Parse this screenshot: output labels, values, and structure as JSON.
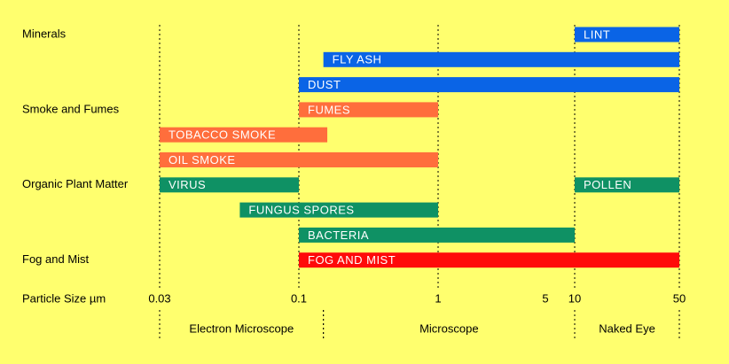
{
  "chart_data": {
    "type": "range-bar",
    "groups": [
      {
        "name": "Minerals",
        "color": "#0a64e6",
        "rows": [
          [
            {
              "name": "LINT",
              "start": 10,
              "end": 50
            }
          ],
          [
            {
              "name": "FLY ASH",
              "start": 0.15,
              "end": 50
            }
          ],
          [
            {
              "name": "DUST",
              "start": 0.1,
              "end": 50
            }
          ]
        ]
      },
      {
        "name": "Smoke and Fumes",
        "color": "#ff6e3c",
        "rows": [
          [
            {
              "name": "FUMES",
              "start": 0.1,
              "end": 1
            }
          ],
          [
            {
              "name": "TOBACCO SMOKE",
              "start": 0.03,
              "end": 0.16
            }
          ],
          [
            {
              "name": "OIL SMOKE",
              "start": 0.03,
              "end": 1
            }
          ]
        ]
      },
      {
        "name": "Organic Plant Matter",
        "color": "#0f9164",
        "rows": [
          [
            {
              "name": "VIRUS",
              "start": 0.03,
              "end": 0.1
            },
            {
              "name": "POLLEN",
              "start": 10,
              "end": 50
            }
          ],
          [
            {
              "name": "FUNGUS SPORES",
              "start": 0.06,
              "end": 1
            }
          ],
          [
            {
              "name": "BACTERIA",
              "start": 0.1,
              "end": 10
            }
          ]
        ]
      },
      {
        "name": "Fog and Mist",
        "color": "#ff0a0a",
        "rows": [
          [
            {
              "name": "FOG AND MIST",
              "start": 0.1,
              "end": 50
            }
          ]
        ]
      }
    ],
    "x_label": "Particle Size µm",
    "log_x": true,
    "xlim": [
      0.03,
      50
    ],
    "xticks": [
      0.03,
      0.1,
      1,
      5,
      10,
      50
    ],
    "gridlines": [
      0.03,
      0.1,
      1,
      10,
      50
    ],
    "regions": [
      {
        "label": "Electron Microscope",
        "range": [
          0.03,
          0.15
        ]
      },
      {
        "label": "Microscope",
        "range": [
          0.15,
          10
        ]
      },
      {
        "label": "Naked Eye",
        "range": [
          10,
          50
        ]
      }
    ]
  }
}
